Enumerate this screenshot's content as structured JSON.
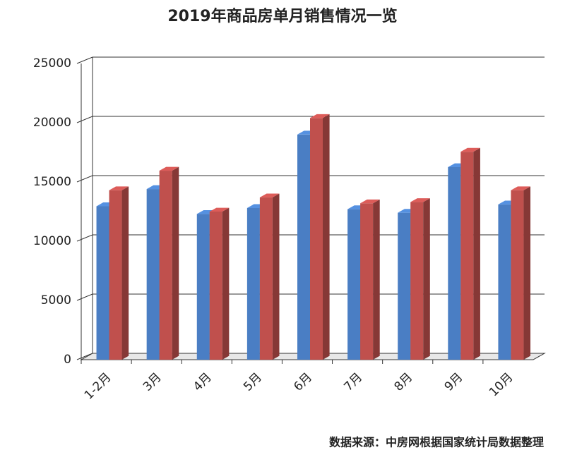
{
  "chart_data": {
    "type": "bar3d",
    "title": "2019年商品房单月销售情况一览",
    "categories": [
      "1-2月",
      "3月",
      "4月",
      "5月",
      "6月",
      "7月",
      "8月",
      "9月",
      "10月"
    ],
    "series": [
      {
        "color": "#4a7ec4",
        "values": [
          12950,
          14400,
          12300,
          12800,
          19000,
          12700,
          12400,
          16250,
          13100
        ]
      },
      {
        "color": "#c0504d",
        "values": [
          14300,
          15950,
          12500,
          13700,
          20400,
          13200,
          13300,
          17550,
          14300
        ]
      }
    ],
    "ylim": [
      0,
      25000
    ],
    "yticks": [
      0,
      5000,
      10000,
      15000,
      20000,
      25000
    ],
    "grid": true,
    "source": "数据来源：中房网根据国家统计局数据整理"
  }
}
